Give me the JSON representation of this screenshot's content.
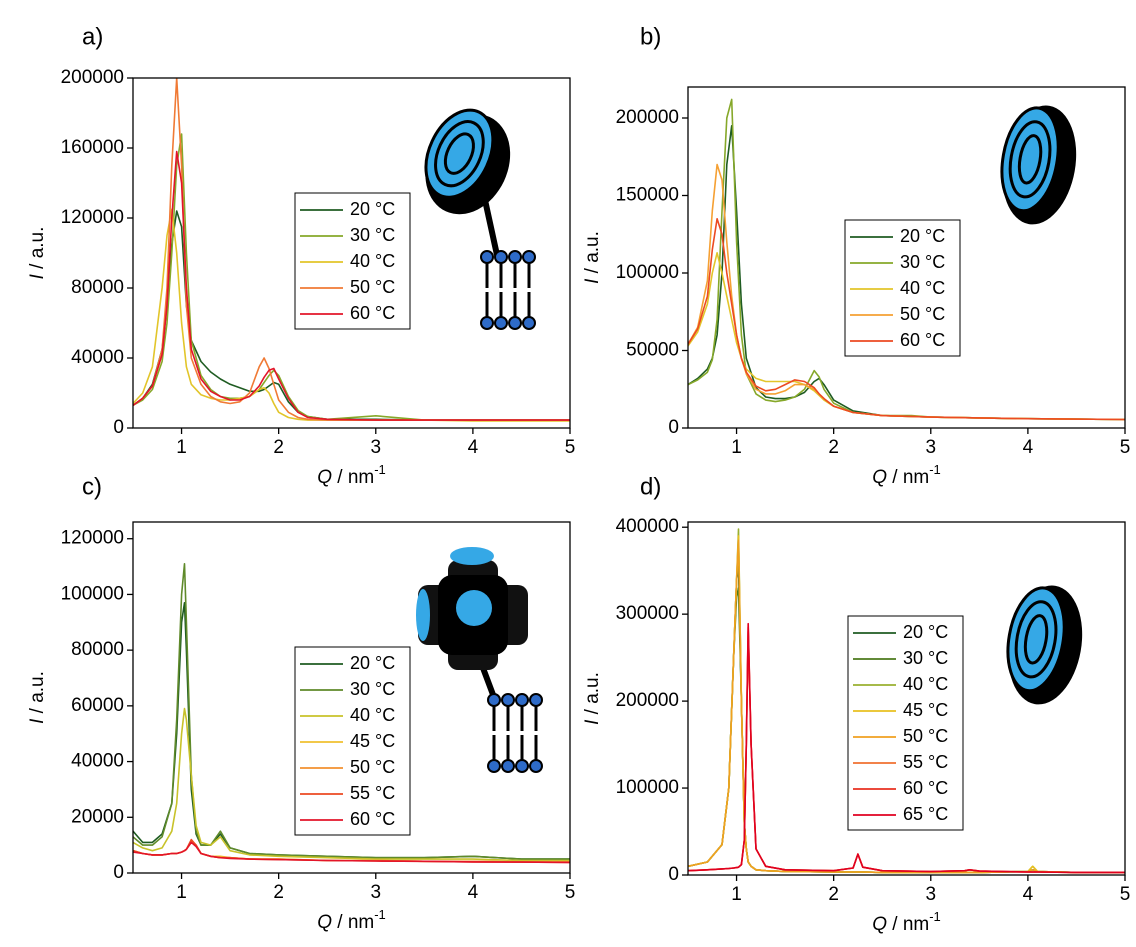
{
  "chart_data": [
    {
      "type": "line",
      "panel_label": "a)",
      "xlabel": {
        "symbol": "Q",
        "unit": " / nm",
        "exponent": "-1"
      },
      "ylabel": {
        "symbol": "I",
        "unit": " / a.u."
      },
      "xlim": [
        0.5,
        5
      ],
      "xticks": [
        1,
        2,
        3,
        4,
        5
      ],
      "ylim": [
        0,
        200000
      ],
      "yticks": [
        0,
        40000,
        80000,
        120000,
        160000,
        200000
      ],
      "legend": "center right",
      "x": [
        0.5,
        0.6,
        0.7,
        0.8,
        0.85,
        0.9,
        0.95,
        1.0,
        1.05,
        1.1,
        1.2,
        1.3,
        1.4,
        1.5,
        1.6,
        1.7,
        1.8,
        1.85,
        1.9,
        1.95,
        2.0,
        2.1,
        2.2,
        2.3,
        2.5,
        3.0,
        3.5,
        4.0,
        5.0
      ],
      "series": [
        {
          "name": "20 °C",
          "color": "#1f5c22",
          "values": [
            13000,
            17000,
            25000,
            45000,
            70000,
            105000,
            124000,
            115000,
            70000,
            50000,
            38000,
            32000,
            28000,
            25000,
            23000,
            21000,
            21000,
            22000,
            24000,
            26000,
            25000,
            15000,
            9000,
            6500,
            5000,
            5000,
            4500,
            4500,
            4500
          ]
        },
        {
          "name": "30 °C",
          "color": "#86a82a",
          "values": [
            13000,
            16000,
            22000,
            38000,
            60000,
            100000,
            150000,
            168000,
            100000,
            50000,
            30000,
            22000,
            18000,
            17000,
            17000,
            18000,
            22000,
            26000,
            30000,
            33000,
            30000,
            18000,
            10000,
            6500,
            5000,
            7000,
            4500,
            4500,
            4500
          ]
        },
        {
          "name": "40 °C",
          "color": "#e2c52a",
          "values": [
            14000,
            20000,
            35000,
            80000,
            110000,
            125000,
            100000,
            60000,
            35000,
            25000,
            19000,
            17000,
            16000,
            16000,
            17000,
            18000,
            22000,
            23000,
            20000,
            14000,
            9000,
            6000,
            5000,
            4500,
            4500,
            4500,
            4500,
            4000,
            4000
          ]
        },
        {
          "name": "50 °C",
          "color": "#f07a35",
          "values": [
            13000,
            17000,
            24000,
            45000,
            80000,
            150000,
            200000,
            150000,
            70000,
            40000,
            25000,
            18000,
            15000,
            14000,
            15000,
            20000,
            35000,
            40000,
            34000,
            25000,
            16000,
            9000,
            6000,
            5000,
            4500,
            4500,
            4500,
            4500,
            4500
          ]
        },
        {
          "name": "60 °C",
          "color": "#e3142a",
          "values": [
            13000,
            17000,
            24000,
            42000,
            70000,
            120000,
            158000,
            140000,
            80000,
            45000,
            28000,
            21000,
            18000,
            16000,
            16000,
            18000,
            24000,
            29000,
            33000,
            34000,
            28000,
            17000,
            9000,
            6000,
            5000,
            4500,
            4500,
            4500,
            4500
          ]
        }
      ]
    },
    {
      "type": "line",
      "panel_label": "b)",
      "xlabel": {
        "symbol": "Q",
        "unit": " / nm",
        "exponent": "-1"
      },
      "ylabel": {
        "symbol": "I",
        "unit": " / a.u."
      },
      "xlim": [
        0.5,
        5
      ],
      "xticks": [
        1,
        2,
        3,
        4,
        5
      ],
      "ylim": [
        0,
        220000
      ],
      "yticks": [
        0,
        50000,
        100000,
        150000,
        200000
      ],
      "legend": "center right",
      "x": [
        0.5,
        0.6,
        0.7,
        0.75,
        0.8,
        0.85,
        0.9,
        0.95,
        1.0,
        1.05,
        1.1,
        1.2,
        1.3,
        1.4,
        1.5,
        1.6,
        1.7,
        1.8,
        1.85,
        1.9,
        2.0,
        2.2,
        2.5,
        2.8,
        3.0,
        3.5,
        4.0,
        5.0
      ],
      "series": [
        {
          "name": "20 °C",
          "color": "#1f5c22",
          "values": [
            28000,
            32000,
            38000,
            45000,
            60000,
            100000,
            170000,
            195000,
            140000,
            80000,
            45000,
            26000,
            20000,
            19000,
            19000,
            20000,
            23000,
            30000,
            32000,
            28000,
            18000,
            11000,
            8000,
            7500,
            7000,
            6500,
            6000,
            5500
          ]
        },
        {
          "name": "30 °C",
          "color": "#86a82a",
          "values": [
            28000,
            31000,
            36000,
            44000,
            70000,
            140000,
            200000,
            212000,
            120000,
            60000,
            35000,
            22000,
            18000,
            17000,
            18000,
            20000,
            25000,
            37000,
            33000,
            25000,
            16000,
            10000,
            8000,
            8000,
            7000,
            6500,
            6000,
            5500
          ]
        },
        {
          "name": "40 °C",
          "color": "#e2c52a",
          "values": [
            53000,
            62000,
            80000,
            100000,
            113000,
            100000,
            85000,
            70000,
            55000,
            45000,
            38000,
            32000,
            30000,
            30000,
            30000,
            30000,
            28000,
            24000,
            21000,
            18000,
            14000,
            10000,
            8000,
            7500,
            7000,
            6500,
            6000,
            5500
          ]
        },
        {
          "name": "50 °C",
          "color": "#f5a033",
          "values": [
            54000,
            65000,
            95000,
            140000,
            170000,
            160000,
            120000,
            85000,
            60000,
            45000,
            35000,
            25000,
            22000,
            22000,
            24000,
            28000,
            28000,
            25000,
            22000,
            19000,
            14000,
            10000,
            8000,
            7500,
            7000,
            6500,
            6000,
            5500
          ]
        },
        {
          "name": "60 °C",
          "color": "#ec4a22",
          "values": [
            54000,
            64000,
            85000,
            115000,
            135000,
            125000,
            100000,
            80000,
            60000,
            45000,
            36000,
            27000,
            24000,
            25000,
            28000,
            31000,
            30000,
            26000,
            22000,
            19000,
            14000,
            10000,
            8000,
            7500,
            7000,
            6500,
            6000,
            5500
          ]
        }
      ]
    },
    {
      "type": "line",
      "panel_label": "c)",
      "xlabel": {
        "symbol": "Q",
        "unit": " / nm",
        "exponent": "-1"
      },
      "ylabel": {
        "symbol": "I",
        "unit": " / a.u."
      },
      "xlim": [
        0.5,
        5
      ],
      "xticks": [
        1,
        2,
        3,
        4,
        5
      ],
      "ylim": [
        0,
        126000
      ],
      "yticks": [
        0,
        20000,
        40000,
        60000,
        80000,
        100000,
        120000
      ],
      "legend": "lower right",
      "x": [
        0.5,
        0.6,
        0.7,
        0.8,
        0.9,
        0.95,
        1.0,
        1.03,
        1.05,
        1.1,
        1.15,
        1.2,
        1.3,
        1.4,
        1.5,
        1.7,
        2.0,
        2.5,
        3.0,
        3.5,
        4.0,
        4.5,
        5.0
      ],
      "series": [
        {
          "name": "20 °C",
          "color": "#1f5c22",
          "values": [
            15000,
            11000,
            11000,
            14000,
            25000,
            50000,
            90000,
            97000,
            80000,
            30000,
            14000,
            10000,
            10000,
            14000,
            9000,
            7000,
            6500,
            6000,
            5500,
            5500,
            6000,
            5000,
            5000
          ]
        },
        {
          "name": "30 °C",
          "color": "#5f8a2a",
          "values": [
            13000,
            10000,
            10000,
            13000,
            25000,
            55000,
            100000,
            111000,
            90000,
            35000,
            15000,
            10000,
            10000,
            15000,
            9000,
            7000,
            6500,
            6000,
            5500,
            5500,
            6000,
            5000,
            5000
          ]
        },
        {
          "name": "40 °C",
          "color": "#c8c22a",
          "values": [
            11000,
            9000,
            8000,
            9000,
            15000,
            25000,
            50000,
            59000,
            55000,
            35000,
            17000,
            11000,
            10000,
            13000,
            8000,
            6500,
            6000,
            5500,
            5000,
            5000,
            5000,
            4500,
            4500
          ]
        },
        {
          "name": "45 °C",
          "color": "#f0c030",
          "values": [
            8000,
            7000,
            6500,
            6500,
            7000,
            7000,
            7500,
            8000,
            8500,
            11000,
            10000,
            7000,
            6000,
            6000,
            5500,
            5000,
            5000,
            4500,
            4500,
            4200,
            4200,
            4000,
            4000
          ]
        },
        {
          "name": "50 °C",
          "color": "#f3902f",
          "values": [
            8000,
            7000,
            6500,
            6500,
            7000,
            7000,
            7500,
            8000,
            8500,
            11500,
            10000,
            7000,
            6000,
            5500,
            5500,
            5000,
            5000,
            4500,
            4500,
            4200,
            4200,
            4000,
            4000
          ]
        },
        {
          "name": "55 °C",
          "color": "#ec4a22",
          "values": [
            8000,
            7000,
            6500,
            6500,
            7000,
            7000,
            7500,
            8000,
            8500,
            12000,
            10000,
            7000,
            6000,
            5500,
            5500,
            5000,
            4800,
            4500,
            4300,
            4200,
            4000,
            3900,
            3800
          ]
        },
        {
          "name": "60 °C",
          "color": "#e3142a",
          "values": [
            7500,
            7000,
            6500,
            6500,
            7000,
            7000,
            7500,
            8000,
            8500,
            11000,
            9500,
            7000,
            6000,
            5500,
            5200,
            5000,
            4800,
            4500,
            4300,
            4200,
            4000,
            3900,
            3800
          ]
        }
      ]
    },
    {
      "type": "line",
      "panel_label": "d)",
      "xlabel": {
        "symbol": "Q",
        "unit": " / nm",
        "exponent": "-1"
      },
      "ylabel": {
        "symbol": "I",
        "unit": " / a.u."
      },
      "xlim": [
        0.5,
        5
      ],
      "xticks": [
        1,
        2,
        3,
        4,
        5
      ],
      "ylim": [
        0,
        406000
      ],
      "yticks": [
        0,
        100000,
        200000,
        300000,
        400000
      ],
      "legend": "center right",
      "x": [
        0.5,
        0.7,
        0.85,
        0.92,
        0.97,
        1.0,
        1.02,
        1.05,
        1.08,
        1.1,
        1.12,
        1.15,
        1.2,
        1.3,
        1.5,
        2.0,
        2.2,
        2.25,
        2.3,
        2.5,
        3.0,
        3.35,
        3.4,
        3.5,
        4.0,
        4.05,
        4.1,
        4.5,
        5.0
      ],
      "series": [
        {
          "name": "20 °C",
          "color": "#1f5c22",
          "values": [
            10000,
            15000,
            35000,
            100000,
            250000,
            340000,
            355000,
            200000,
            60000,
            30000,
            15000,
            10000,
            6000,
            5000,
            4000,
            3500,
            3500,
            3500,
            3500,
            3000,
            3000,
            3000,
            3000,
            3000,
            4000,
            6000,
            4000,
            3000,
            3000
          ]
        },
        {
          "name": "30 °C",
          "color": "#4b7a1c",
          "values": [
            10000,
            15000,
            35000,
            100000,
            250000,
            320000,
            330000,
            200000,
            60000,
            30000,
            15000,
            10000,
            6000,
            5000,
            4000,
            3500,
            3500,
            3500,
            3500,
            3000,
            3000,
            3000,
            3000,
            3000,
            4000,
            6000,
            4000,
            3000,
            3000
          ]
        },
        {
          "name": "40 °C",
          "color": "#9ab030",
          "values": [
            10000,
            15000,
            35000,
            100000,
            250000,
            340000,
            398000,
            200000,
            60000,
            30000,
            15000,
            10000,
            6000,
            5000,
            4000,
            3500,
            3500,
            3500,
            3500,
            3000,
            3000,
            3000,
            3000,
            3000,
            4000,
            10000,
            4000,
            3000,
            3000
          ]
        },
        {
          "name": "45 °C",
          "color": "#e8c020",
          "values": [
            10000,
            15000,
            35000,
            100000,
            250000,
            340000,
            390000,
            200000,
            60000,
            30000,
            15000,
            10000,
            6000,
            5000,
            4000,
            3500,
            3500,
            3500,
            3500,
            3000,
            3000,
            3000,
            3000,
            3000,
            4000,
            10000,
            4000,
            3000,
            3000
          ]
        },
        {
          "name": "50 °C",
          "color": "#f0a020",
          "values": [
            10000,
            15000,
            35000,
            100000,
            250000,
            340000,
            385000,
            200000,
            60000,
            30000,
            15000,
            10000,
            6000,
            5000,
            4000,
            3500,
            3500,
            3500,
            3500,
            3000,
            3000,
            3000,
            3000,
            3000,
            4000,
            6000,
            4000,
            3000,
            3000
          ]
        },
        {
          "name": "55 °C",
          "color": "#f07030",
          "values": [
            5000,
            6000,
            7000,
            7500,
            8000,
            8500,
            9000,
            12000,
            40000,
            150000,
            280000,
            150000,
            30000,
            10000,
            6000,
            5000,
            8000,
            24000,
            9000,
            5000,
            4000,
            5000,
            6000,
            4500,
            3500,
            3500,
            3500,
            3000,
            3000
          ]
        },
        {
          "name": "60 °C",
          "color": "#e83020",
          "values": [
            5000,
            6000,
            7000,
            7500,
            8000,
            8500,
            9000,
            12000,
            40000,
            150000,
            285000,
            150000,
            30000,
            10000,
            6000,
            5000,
            8000,
            24000,
            9000,
            5000,
            4000,
            5000,
            6000,
            4500,
            3500,
            3500,
            3500,
            3000,
            3000
          ]
        },
        {
          "name": "65 °C",
          "color": "#e00020",
          "values": [
            5000,
            6000,
            7000,
            7500,
            8000,
            8500,
            9000,
            12000,
            40000,
            150000,
            289000,
            150000,
            30000,
            10000,
            6000,
            5000,
            8000,
            24000,
            9000,
            5000,
            4000,
            5000,
            6000,
            4500,
            3500,
            3500,
            3500,
            3000,
            3000
          ]
        }
      ]
    }
  ]
}
